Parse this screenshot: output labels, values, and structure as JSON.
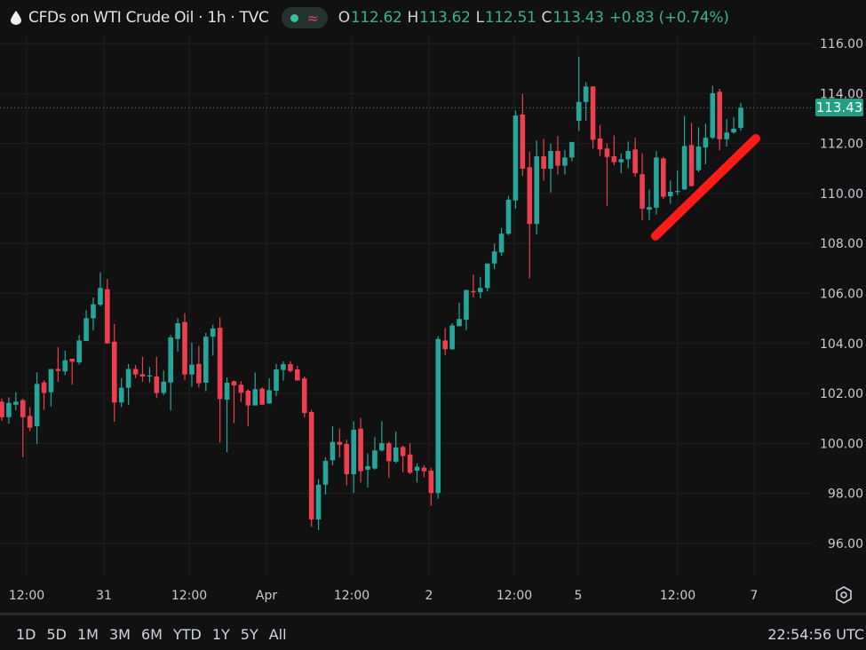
{
  "header": {
    "icon": "oil-drop-icon",
    "title": "CFDs on WTI Crude Oil · 1h · TVC",
    "status_icons": [
      "market-open-dot-icon",
      "delayed-data-icon"
    ],
    "delayed_glyph": "≈",
    "ohlc": {
      "o_label": "O",
      "o": "112.62",
      "h_label": "H",
      "h": "113.62",
      "l_label": "L",
      "l": "112.51",
      "c_label": "C",
      "c": "113.43",
      "change": "+0.83 (+0.74%)"
    }
  },
  "price_label": "113.43",
  "range_buttons": [
    "1D",
    "5D",
    "1M",
    "3M",
    "6M",
    "YTD",
    "1Y",
    "5Y",
    "All"
  ],
  "clock": "22:54:56 UTC",
  "settings_icon": "gear-icon",
  "colors": {
    "up": "#26a69a",
    "down": "#ef3e50",
    "background": "#111111",
    "grid": "#1e1e1e",
    "annotation": "#ff1a1a"
  },
  "chart_data": {
    "type": "candlestick",
    "ylim": [
      95,
      116.5
    ],
    "yticks": [
      "96.00",
      "98.00",
      "100.00",
      "102.00",
      "104.00",
      "106.00",
      "108.00",
      "110.00",
      "112.00",
      "114.00",
      "116.00"
    ],
    "xticks": [
      "12:00",
      "31",
      "12:00",
      "Apr",
      "12:00",
      "2",
      "12:00",
      "5",
      "12:00",
      "7"
    ],
    "grid": true,
    "last_price": 113.43,
    "annotation": {
      "type": "trend-line",
      "color": "#ff1a1a",
      "from_price": 108.3,
      "to_price": 112.2
    },
    "ohlc": [
      [
        101.67,
        101.05,
        101.8,
        100.9
      ],
      [
        101.05,
        101.62,
        101.85,
        100.79
      ],
      [
        101.55,
        101.67,
        102.05,
        101.32
      ],
      [
        101.73,
        101.05,
        101.8,
        99.45
      ],
      [
        101.1,
        100.63,
        101.46,
        100.49
      ],
      [
        100.69,
        102.38,
        102.85,
        99.98
      ],
      [
        102.44,
        102.02,
        102.53,
        101.34
      ],
      [
        102.05,
        102.98,
        102.98,
        101.48
      ],
      [
        102.98,
        102.9,
        103.85,
        102.47
      ],
      [
        102.88,
        103.33,
        103.71,
        102.73
      ],
      [
        103.39,
        103.27,
        103.39,
        102.35
      ],
      [
        103.24,
        104.12,
        104.33,
        103.15
      ],
      [
        104.1,
        105.01,
        105.33,
        104.1
      ],
      [
        105.01,
        105.57,
        105.84,
        104.52
      ],
      [
        105.55,
        106.22,
        106.85,
        105.49
      ],
      [
        106.17,
        104.0,
        106.58,
        104.0
      ],
      [
        104.07,
        101.64,
        104.78,
        100.87
      ],
      [
        101.64,
        102.23,
        102.61,
        101.46
      ],
      [
        102.23,
        102.98,
        103.18,
        101.55
      ],
      [
        102.98,
        102.76,
        103.14,
        102.61
      ],
      [
        102.77,
        102.68,
        103.47,
        102.47
      ],
      [
        102.68,
        102.72,
        103.06,
        102.44
      ],
      [
        102.68,
        102.02,
        103.47,
        101.82
      ],
      [
        102.02,
        102.47,
        102.92,
        101.93
      ],
      [
        102.44,
        104.24,
        104.34,
        101.32
      ],
      [
        104.18,
        104.81,
        105.01,
        103.68
      ],
      [
        104.86,
        102.76,
        105.21,
        102.53
      ],
      [
        102.76,
        103.15,
        104.04,
        102.27
      ],
      [
        103.18,
        102.41,
        103.91,
        102.23
      ],
      [
        102.43,
        104.27,
        104.42,
        102.09
      ],
      [
        104.27,
        104.6,
        104.75,
        103.51
      ],
      [
        104.63,
        101.78,
        105.04,
        100.04
      ],
      [
        101.75,
        102.43,
        102.64,
        99.65
      ],
      [
        102.49,
        102.32,
        102.52,
        100.81
      ],
      [
        102.35,
        102.03,
        102.49,
        101.66
      ],
      [
        102.11,
        101.52,
        102.17,
        100.69
      ],
      [
        101.52,
        102.17,
        102.84,
        101.52
      ],
      [
        102.19,
        101.55,
        102.25,
        101.55
      ],
      [
        101.6,
        102.13,
        102.61,
        101.58
      ],
      [
        102.11,
        102.96,
        103.18,
        101.9
      ],
      [
        102.94,
        103.17,
        103.29,
        102.52
      ],
      [
        103.17,
        102.9,
        103.29,
        102.84
      ],
      [
        102.96,
        102.52,
        103.11,
        102.52
      ],
      [
        102.6,
        101.22,
        102.68,
        101.04
      ],
      [
        101.26,
        96.96,
        101.34,
        96.66
      ],
      [
        96.96,
        98.35,
        98.58,
        96.54
      ],
      [
        98.35,
        99.3,
        99.44,
        97.96
      ],
      [
        99.33,
        100.06,
        100.69,
        99.13
      ],
      [
        100.06,
        99.95,
        100.6,
        99.44
      ],
      [
        99.98,
        98.77,
        100.15,
        98.32
      ],
      [
        98.77,
        100.55,
        100.89,
        98.02
      ],
      [
        100.59,
        98.89,
        101.02,
        98.44
      ],
      [
        98.95,
        99.09,
        99.6,
        98.24
      ],
      [
        99.0,
        99.72,
        100.25,
        98.95
      ],
      [
        99.72,
        100.01,
        100.89,
        99.68
      ],
      [
        100.01,
        99.29,
        100.07,
        98.62
      ],
      [
        99.27,
        99.84,
        100.48,
        99.21
      ],
      [
        99.86,
        99.5,
        99.92,
        98.85
      ],
      [
        99.56,
        98.83,
        100.01,
        98.77
      ],
      [
        98.91,
        99.07,
        99.21,
        98.44
      ],
      [
        99.03,
        98.89,
        99.12,
        98.65
      ],
      [
        98.91,
        98.02,
        99.03,
        97.51
      ],
      [
        98.02,
        104.18,
        104.3,
        97.79
      ],
      [
        104.12,
        103.77,
        104.62,
        103.53
      ],
      [
        103.77,
        104.72,
        104.81,
        103.74
      ],
      [
        104.69,
        104.98,
        105.63,
        104.69
      ],
      [
        104.95,
        106.14,
        106.14,
        104.54
      ],
      [
        106.1,
        106.05,
        106.75,
        105.84
      ],
      [
        106.05,
        106.22,
        106.67,
        105.81
      ],
      [
        106.22,
        107.2,
        107.2,
        106.08
      ],
      [
        107.2,
        107.68,
        108.0,
        106.97
      ],
      [
        107.64,
        108.39,
        108.62,
        107.5
      ],
      [
        108.39,
        109.75,
        109.9,
        108.33
      ],
      [
        109.72,
        113.12,
        113.32,
        109.39
      ],
      [
        113.16,
        110.99,
        113.98,
        110.7
      ],
      [
        111.05,
        108.78,
        111.68,
        106.61
      ],
      [
        108.78,
        111.49,
        112.12,
        108.36
      ],
      [
        111.49,
        110.99,
        112.18,
        110.52
      ],
      [
        110.99,
        111.7,
        112.0,
        110.04
      ],
      [
        111.7,
        111.11,
        112.3,
        110.76
      ],
      [
        111.11,
        111.44,
        111.74,
        110.76
      ],
      [
        111.44,
        112.06,
        112.06,
        111.29
      ],
      [
        112.91,
        113.66,
        115.47,
        112.51
      ],
      [
        113.66,
        114.28,
        114.45,
        112.91
      ],
      [
        114.28,
        112.15,
        114.3,
        111.8
      ],
      [
        112.2,
        111.76,
        112.74,
        111.5
      ],
      [
        111.8,
        111.46,
        112.0,
        109.51
      ],
      [
        111.49,
        111.25,
        112.32,
        111.13
      ],
      [
        111.25,
        111.37,
        111.6,
        110.81
      ],
      [
        111.37,
        111.7,
        112.08,
        111.01
      ],
      [
        111.76,
        110.81,
        112.23,
        110.66
      ],
      [
        110.77,
        109.39,
        111.61,
        108.92
      ],
      [
        109.35,
        109.46,
        110.16,
        108.94
      ],
      [
        109.43,
        111.44,
        111.7,
        109.16
      ],
      [
        111.4,
        109.87,
        111.46,
        109.78
      ],
      [
        109.89,
        110.07,
        110.52,
        109.59
      ],
      [
        110.07,
        110.1,
        110.93,
        109.93
      ],
      [
        110.16,
        111.9,
        113.1,
        110.14
      ],
      [
        111.94,
        110.3,
        112.83,
        110.28
      ],
      [
        110.93,
        111.88,
        112.65,
        110.85
      ],
      [
        111.84,
        112.23,
        112.79,
        111.17
      ],
      [
        112.23,
        114.01,
        114.31,
        112.17
      ],
      [
        114.07,
        112.17,
        114.19,
        111.73
      ],
      [
        112.17,
        112.44,
        112.98,
        111.88
      ],
      [
        112.44,
        112.59,
        113.06,
        112.39
      ],
      [
        112.62,
        113.43,
        113.62,
        112.51
      ]
    ]
  }
}
